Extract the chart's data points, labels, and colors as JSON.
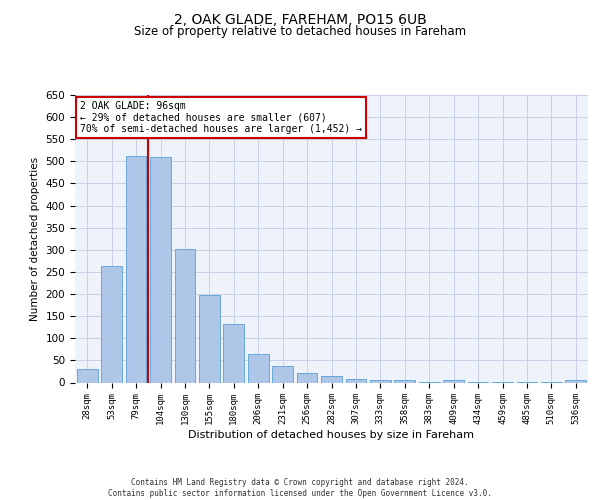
{
  "title": "2, OAK GLADE, FAREHAM, PO15 6UB",
  "subtitle": "Size of property relative to detached houses in Fareham",
  "xlabel": "Distribution of detached houses by size in Fareham",
  "ylabel": "Number of detached properties",
  "categories": [
    "28sqm",
    "53sqm",
    "79sqm",
    "104sqm",
    "130sqm",
    "155sqm",
    "180sqm",
    "206sqm",
    "231sqm",
    "256sqm",
    "282sqm",
    "307sqm",
    "333sqm",
    "358sqm",
    "383sqm",
    "409sqm",
    "434sqm",
    "459sqm",
    "485sqm",
    "510sqm",
    "536sqm"
  ],
  "values": [
    30,
    263,
    512,
    510,
    302,
    197,
    132,
    65,
    37,
    22,
    15,
    9,
    5,
    5,
    1,
    5,
    1,
    1,
    1,
    1,
    5
  ],
  "bar_color": "#aec6e8",
  "bar_edge_color": "#5a9fd4",
  "vline_x_index": 2.5,
  "vline_color": "#cc0000",
  "annotation_text": "2 OAK GLADE: 96sqm\n← 29% of detached houses are smaller (607)\n70% of semi-detached houses are larger (1,452) →",
  "annotation_box_color": "#ffffff",
  "annotation_box_edge": "#cc0000",
  "ylim": [
    0,
    650
  ],
  "yticks": [
    0,
    50,
    100,
    150,
    200,
    250,
    300,
    350,
    400,
    450,
    500,
    550,
    600,
    650
  ],
  "footer_text": "Contains HM Land Registry data © Crown copyright and database right 2024.\nContains public sector information licensed under the Open Government Licence v3.0.",
  "bg_color": "#eef2fb",
  "grid_color": "#c8d0e8",
  "title_fontsize": 10,
  "subtitle_fontsize": 8.5,
  "xlabel_fontsize": 8,
  "ylabel_fontsize": 7.5,
  "tick_fontsize": 6.5,
  "ytick_fontsize": 7.5,
  "footer_fontsize": 5.5
}
